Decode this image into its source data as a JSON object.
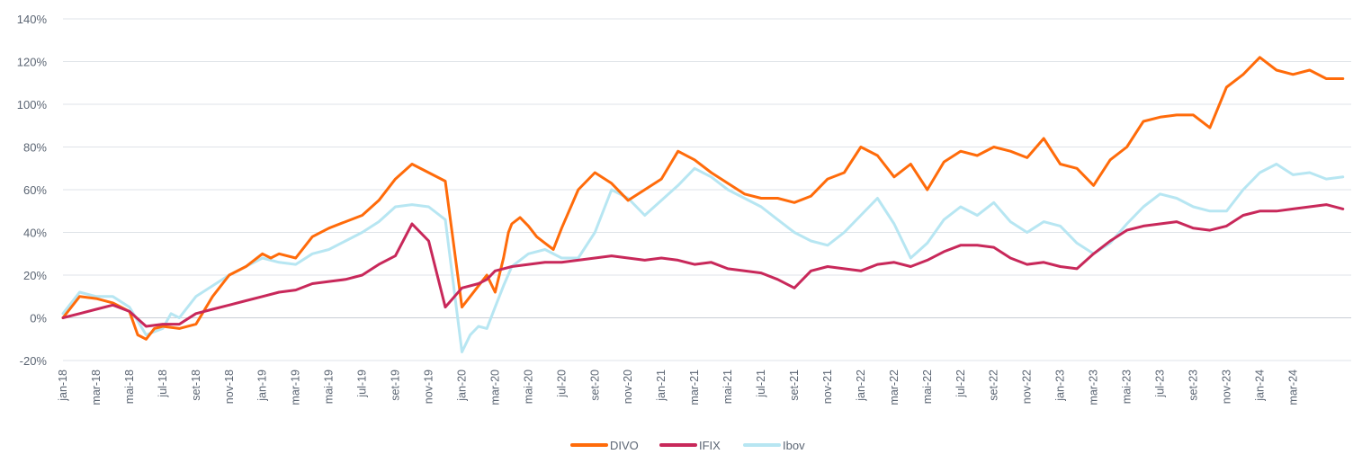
{
  "chart_data": {
    "type": "line",
    "title": "",
    "xlabel": "",
    "ylabel": "",
    "ylim": [
      -20,
      140
    ],
    "y_ticks": [
      -20,
      0,
      20,
      40,
      60,
      80,
      100,
      120,
      140
    ],
    "y_tick_labels": [
      "-20%",
      "0%",
      "20%",
      "40%",
      "60%",
      "80%",
      "100%",
      "120%",
      "140%"
    ],
    "x_range": [
      0,
      77.5
    ],
    "x_ticks": [
      0,
      2,
      4,
      6,
      8,
      10,
      12,
      14,
      16,
      18,
      20,
      22,
      24,
      26,
      28,
      30,
      32,
      34,
      36,
      38,
      40,
      42,
      44,
      46,
      48,
      50,
      52,
      54,
      56,
      58,
      60,
      62,
      64,
      66,
      68,
      70,
      72,
      74
    ],
    "x_tick_labels": [
      "jan-18",
      "mar-18",
      "mai-18",
      "jul-18",
      "set-18",
      "nov-18",
      "jan-19",
      "mar-19",
      "mai-19",
      "jul-19",
      "set-19",
      "nov-19",
      "jan-20",
      "mar-20",
      "mai-20",
      "jul-20",
      "set-20",
      "nov-20",
      "jan-21",
      "mar-21",
      "mai-21",
      "jul-21",
      "set-21",
      "nov-21",
      "jan-22",
      "mar-22",
      "mai-22",
      "jul-22",
      "set-22",
      "nov-22",
      "jan-23",
      "mar-23",
      "mai-23",
      "jul-23",
      "set-23",
      "nov-23",
      "jan-24",
      "mar-24"
    ],
    "grid": true,
    "legend": "bottom-center",
    "series": [
      {
        "name": "DIVO",
        "color": "#ff6b0a",
        "x": [
          0,
          1,
          2,
          3,
          4,
          4.5,
          5,
          5.5,
          6,
          7,
          8,
          9,
          10,
          11,
          12,
          12.5,
          13,
          14,
          15,
          16,
          17,
          18,
          19,
          20,
          21,
          22,
          23,
          24,
          25,
          25.5,
          26,
          26.5,
          26.8,
          27,
          27.5,
          28,
          28.5,
          29,
          29.5,
          30,
          31,
          32,
          33,
          34,
          35,
          36,
          37,
          38,
          39,
          40,
          41,
          42,
          43,
          44,
          45,
          46,
          47,
          48,
          49,
          50,
          51,
          52,
          53,
          54,
          55,
          56,
          57,
          58,
          59,
          60,
          61,
          62,
          63,
          64,
          65,
          66,
          67,
          68,
          69,
          70,
          71,
          72,
          73,
          74,
          75,
          76,
          77
        ],
        "y": [
          0,
          10,
          9,
          7,
          3,
          -8,
          -10,
          -5,
          -4,
          -5,
          -3,
          10,
          20,
          24,
          30,
          28,
          30,
          28,
          38,
          42,
          45,
          48,
          55,
          65,
          72,
          68,
          64,
          5,
          15,
          20,
          12,
          28,
          40,
          44,
          47,
          43,
          38,
          35,
          32,
          42,
          60,
          68,
          63,
          55,
          60,
          65,
          78,
          74,
          68,
          63,
          58,
          56,
          56,
          54,
          57,
          65,
          68,
          80,
          76,
          66,
          72,
          60,
          73,
          78,
          76,
          80,
          78,
          75,
          84,
          72,
          70,
          62,
          74,
          80,
          92,
          94,
          95,
          95,
          89,
          108,
          114,
          122,
          116,
          114,
          116,
          112,
          112
        ]
      },
      {
        "name": "IFIX",
        "color": "#c8285a",
        "x": [
          0,
          1,
          2,
          3,
          4,
          5,
          6,
          7,
          8,
          9,
          10,
          11,
          12,
          13,
          14,
          15,
          16,
          17,
          18,
          19,
          20,
          21,
          22,
          23,
          24,
          25,
          25.5,
          26,
          26.5,
          27,
          28,
          29,
          30,
          31,
          32,
          33,
          34,
          35,
          36,
          37,
          38,
          39,
          40,
          41,
          42,
          43,
          44,
          45,
          46,
          47,
          48,
          49,
          50,
          51,
          52,
          53,
          54,
          55,
          56,
          57,
          58,
          59,
          60,
          61,
          62,
          63,
          64,
          65,
          66,
          67,
          68,
          69,
          70,
          71,
          72,
          73,
          74,
          75,
          76,
          77
        ],
        "y": [
          0,
          2,
          4,
          6,
          3,
          -4,
          -3,
          -3,
          2,
          4,
          6,
          8,
          10,
          12,
          13,
          16,
          17,
          18,
          20,
          25,
          29,
          44,
          36,
          5,
          14,
          16,
          18,
          22,
          23,
          24,
          25,
          26,
          26,
          27,
          28,
          29,
          28,
          27,
          28,
          27,
          25,
          26,
          23,
          22,
          21,
          18,
          14,
          22,
          24,
          23,
          22,
          25,
          26,
          24,
          27,
          31,
          34,
          34,
          33,
          28,
          25,
          26,
          24,
          23,
          30,
          36,
          41,
          43,
          44,
          45,
          42,
          41,
          43,
          48,
          50,
          50,
          51,
          52,
          53,
          51
        ]
      },
      {
        "name": "Ibov",
        "color": "#b7e6f2",
        "x": [
          0,
          1,
          2,
          3,
          4,
          5,
          6,
          6.5,
          7,
          8,
          9,
          10,
          11,
          12,
          13,
          14,
          15,
          16,
          17,
          18,
          19,
          20,
          21,
          22,
          23,
          24,
          24.5,
          25,
          25.5,
          26,
          26.5,
          27,
          28,
          29,
          30,
          31,
          32,
          33,
          34,
          35,
          36,
          37,
          38,
          39,
          40,
          41,
          42,
          43,
          44,
          45,
          46,
          47,
          48,
          49,
          50,
          51,
          52,
          53,
          54,
          55,
          56,
          57,
          58,
          59,
          60,
          61,
          62,
          63,
          64,
          65,
          66,
          67,
          68,
          69,
          70,
          71,
          72,
          73,
          74,
          75,
          76,
          77
        ],
        "y": [
          2,
          12,
          10,
          10,
          5,
          -8,
          -5,
          2,
          0,
          10,
          15,
          20,
          24,
          28,
          26,
          25,
          30,
          32,
          36,
          40,
          45,
          52,
          53,
          52,
          46,
          -16,
          -8,
          -4,
          -5,
          5,
          15,
          24,
          30,
          32,
          28,
          28,
          40,
          60,
          56,
          48,
          55,
          62,
          70,
          66,
          60,
          56,
          52,
          46,
          40,
          36,
          34,
          40,
          48,
          56,
          44,
          28,
          35,
          46,
          52,
          48,
          54,
          45,
          40,
          45,
          43,
          35,
          30,
          35,
          44,
          52,
          58,
          56,
          52,
          50,
          50,
          60,
          68,
          72,
          67,
          68,
          65,
          66
        ]
      }
    ]
  }
}
